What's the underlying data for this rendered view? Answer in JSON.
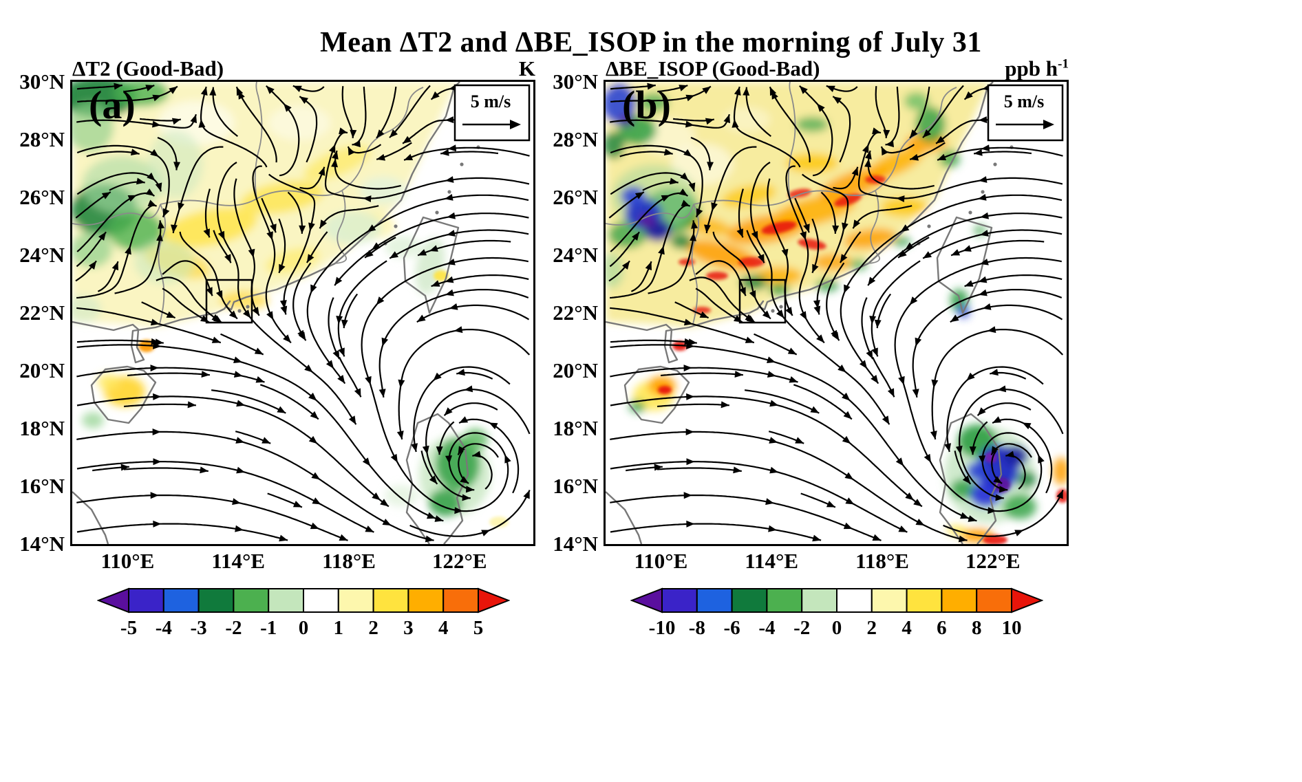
{
  "title": "Mean ΔT2 and ΔBE_ISOP in the morning of July 31",
  "panels": [
    {
      "letter": "(a)",
      "header_left": "ΔT2 (Good-Bad)",
      "unit_base": "K",
      "unit_sup": "",
      "wind_legend": "5 m/s",
      "colorbar": {
        "tick_labels": [
          "-5",
          "-4",
          "-3",
          "-2",
          "-1",
          "0",
          "1",
          "2",
          "3",
          "4",
          "5"
        ]
      }
    },
    {
      "letter": "(b)",
      "header_left": "ΔBE_ISOP (Good-Bad)",
      "unit_base": "ppb h",
      "unit_sup": "-1",
      "wind_legend": "5 m/s",
      "colorbar": {
        "tick_labels": [
          "-10",
          "-8",
          "-6",
          "-4",
          "-2",
          "0",
          "2",
          "4",
          "6",
          "8",
          "10"
        ]
      }
    }
  ],
  "axes": {
    "lat_ticks": [
      "30°N",
      "28°N",
      "26°N",
      "24°N",
      "22°N",
      "20°N",
      "18°N",
      "16°N",
      "14°N"
    ],
    "lon_ticks": [
      "110°E",
      "114°E",
      "118°E",
      "122°E"
    ]
  },
  "colorbar_colors": [
    "#5a0f9e",
    "#3a23c8",
    "#1e62e0",
    "#107a3c",
    "#4cb04f",
    "#c4e6bc",
    "#ffffff",
    "#fdf7ad",
    "#ffe33e",
    "#ffae00",
    "#f86e0a",
    "#e8150a"
  ],
  "chart_data": [
    {
      "type": "heatmap",
      "title": "ΔT2 (Good-Bad)",
      "units": "K",
      "lon_range_deg_e": [
        108,
        124.7
      ],
      "lat_range_deg_n": [
        14,
        30
      ],
      "lon_ticks_deg_e": [
        110,
        114,
        118,
        122
      ],
      "lat_ticks_deg_n": [
        30,
        28,
        26,
        24,
        22,
        20,
        18,
        16,
        14
      ],
      "colorbar_levels": [
        -5,
        -4,
        -3,
        -2,
        -1,
        0,
        1,
        2,
        3,
        4,
        5
      ],
      "colorbar_extends": "both",
      "wind_reference": "5 m/s",
      "overlay": "black wind streamlines with arrowheads; cyclonic vortex (typhoon) centered near 122.7°E, 16.2°N; gray coastlines and province borders",
      "highlight_box_lonlat": [
        112.7,
        21.7,
        114.3,
        23.2
      ],
      "notable_regions": [
        {
          "area": "NW corner, 108-111°E 24-30°N",
          "sign": "negative",
          "approx_value": -3
        },
        {
          "area": "inland South China, 111-119°E 22-28°N",
          "sign": "positive",
          "approx_value": 1.5
        },
        {
          "area": "near typhoon east of Luzon, 121-122.5°E 15-18.5°N",
          "sign": "negative",
          "approx_value": -2
        },
        {
          "area": "Hainan Island",
          "sign": "positive",
          "approx_value": 2.5
        }
      ]
    },
    {
      "type": "heatmap",
      "title": "ΔBE_ISOP (Good-Bad)",
      "units": "ppb h-1",
      "lon_range_deg_e": [
        108,
        124.7
      ],
      "lat_range_deg_n": [
        14,
        30
      ],
      "lon_ticks_deg_e": [
        110,
        114,
        118,
        122
      ],
      "lat_ticks_deg_n": [
        30,
        28,
        26,
        24,
        22,
        20,
        18,
        16,
        14
      ],
      "colorbar_levels": [
        -10,
        -8,
        -6,
        -4,
        -2,
        0,
        2,
        4,
        6,
        8,
        10
      ],
      "colorbar_extends": "both",
      "wind_reference": "5 m/s",
      "overlay": "black wind streamlines with arrowheads; cyclonic vortex (typhoon) centered near 122.7°E, 16.2°N; gray coastlines and province borders",
      "highlight_box_lonlat": [
        112.7,
        21.7,
        114.3,
        23.2
      ],
      "notable_regions": [
        {
          "area": "inland South China band, 111-119°E 23-27°N",
          "sign": "positive",
          "approx_value": 6
        },
        {
          "area": "NW cluster, 109-110.5°E 24.5-26.5°N",
          "sign": "negative",
          "approx_value": -8
        },
        {
          "area": "typhoon region east of Luzon, 120.5-122.5°E 15-18.5°N",
          "sign": "negative",
          "approx_value": -9
        },
        {
          "area": "Hainan Island spots",
          "sign": "positive",
          "approx_value": 7
        }
      ]
    }
  ]
}
